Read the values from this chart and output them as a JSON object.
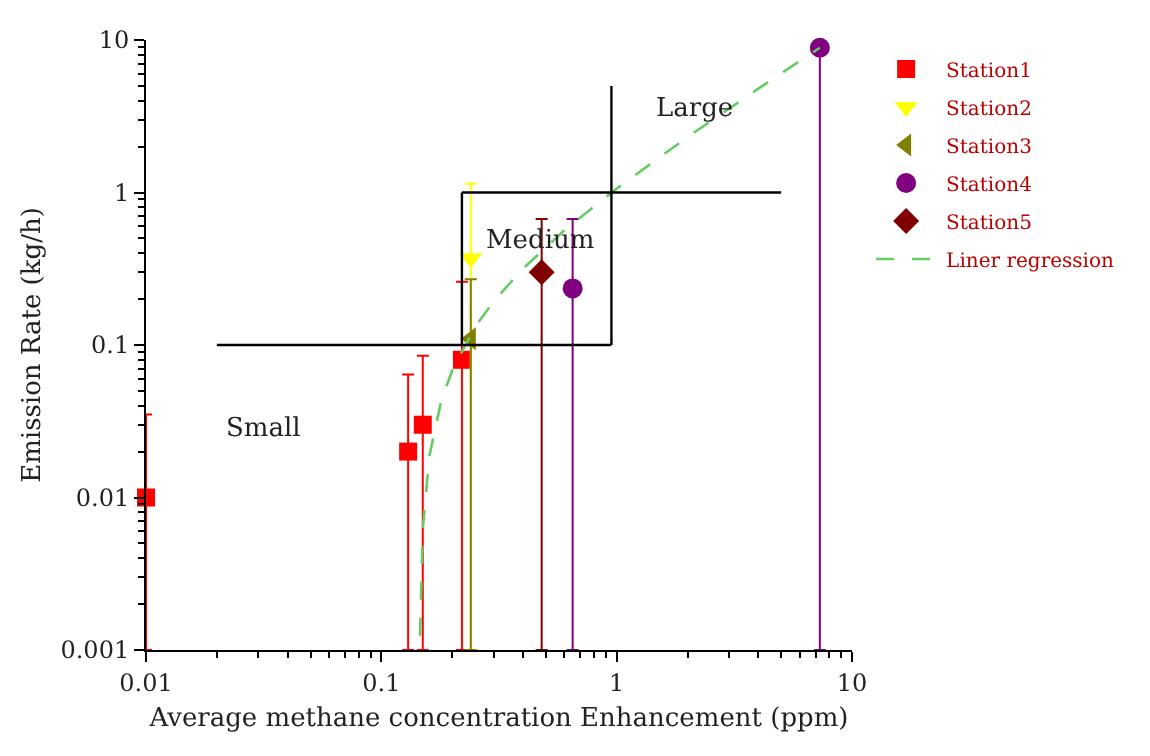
{
  "chart_data": {
    "type": "scatter",
    "xlabel": "Average methane concentration Enhancement (ppm)",
    "ylabel": "Emission Rate (kg/h)",
    "log": "xy",
    "xlim": [
      0.01,
      10
    ],
    "ylim": [
      0.001,
      10
    ],
    "xticks": [
      0.01,
      0.1,
      1,
      10
    ],
    "yticks": [
      0.001,
      0.01,
      0.1,
      1,
      10
    ],
    "grid": false,
    "legend": "right",
    "series": [
      {
        "name": "Station1",
        "color": "#ff0000",
        "marker": "square",
        "x": [
          0.01,
          0.13,
          0.15,
          0.22
        ],
        "values": [
          0.01,
          0.02,
          0.03,
          0.08
        ],
        "errors": [
          [
            0.001,
            0.035
          ],
          [
            0.001,
            0.064
          ],
          [
            0.001,
            0.085
          ],
          [
            0.001,
            0.26
          ]
        ]
      },
      {
        "name": "Station2",
        "color": "#ffff00",
        "marker": "triangle-down",
        "x": [
          0.24
        ],
        "values": [
          0.37
        ],
        "errors": [
          [
            0.001,
            1.14
          ]
        ]
      },
      {
        "name": "Station3",
        "color": "#808000",
        "marker": "triangle-left",
        "x": [
          0.24
        ],
        "values": [
          0.11
        ],
        "errors": [
          [
            0.001,
            0.27
          ]
        ]
      },
      {
        "name": "Station4",
        "color": "#800080",
        "marker": "circle",
        "x": [
          0.65,
          7.3
        ],
        "values": [
          0.235,
          8.9
        ],
        "errors": [
          [
            0.001,
            0.67
          ],
          [
            0.001,
            8.9
          ]
        ]
      },
      {
        "name": "Station5",
        "color": "#800000",
        "marker": "diamond",
        "x": [
          0.48
        ],
        "values": [
          0.3
        ],
        "errors": [
          [
            0.001,
            0.67
          ]
        ]
      },
      {
        "name": "Liner regression",
        "type": "line",
        "color": "#66cc66",
        "line_style": "dashed",
        "marker": "none",
        "x": [
          0.146,
          0.15,
          0.16,
          0.18,
          0.2,
          0.25,
          0.3,
          0.4,
          0.6,
          1,
          2,
          4,
          7.3
        ],
        "values": [
          0.00124,
          0.0062,
          0.0187,
          0.0435,
          0.068,
          0.131,
          0.193,
          0.317,
          0.566,
          1.06,
          2.31,
          4.8,
          8.9
        ]
      },
      {
        "type": "line",
        "color": "#000000",
        "line_style": "solid",
        "marker": "none",
        "x": [
          0.02,
          0.95
        ],
        "values": [
          0.1,
          0.1
        ]
      },
      {
        "type": "line",
        "color": "#000000",
        "line_style": "solid",
        "marker": "none",
        "x": [
          0.22,
          0.22
        ],
        "values": [
          0.1,
          1
        ]
      },
      {
        "type": "line",
        "color": "#000000",
        "line_style": "solid",
        "marker": "none",
        "x": [
          0.22,
          5
        ],
        "values": [
          1,
          1
        ]
      },
      {
        "type": "line",
        "color": "#000000",
        "line_style": "solid",
        "marker": "none",
        "x": [
          0.95,
          0.95
        ],
        "values": [
          0.1,
          5
        ]
      }
    ],
    "annotations": [
      "Small",
      "Medium",
      "Large"
    ]
  }
}
